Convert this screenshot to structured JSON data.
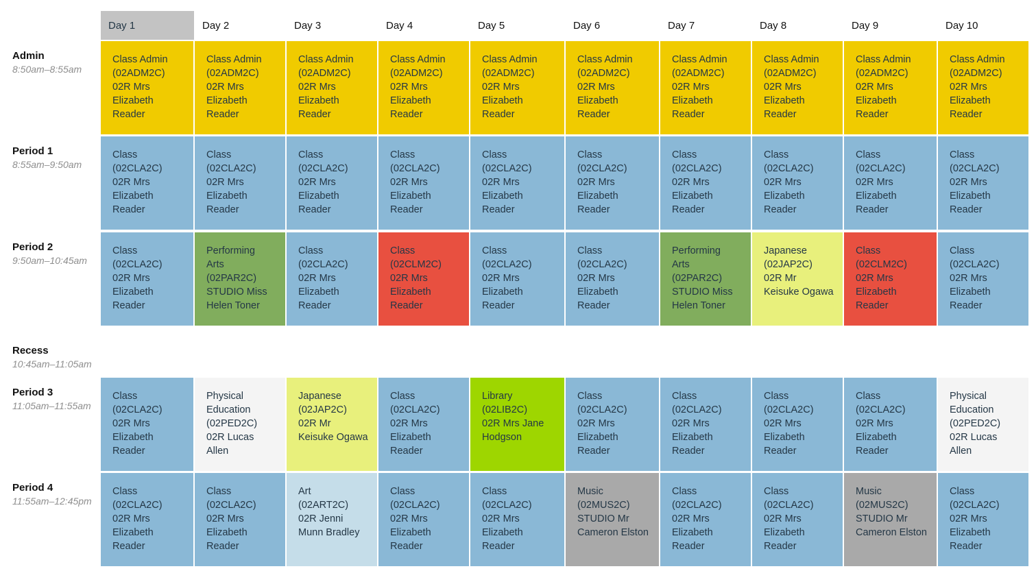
{
  "days": [
    "Day 1",
    "Day 2",
    "Day 3",
    "Day 4",
    "Day 5",
    "Day 6",
    "Day 7",
    "Day 8",
    "Day 9",
    "Day 10"
  ],
  "selected_day_index": 0,
  "classes": {
    "ADM": {
      "lines": [
        "Class Admin",
        "(02ADM2C)",
        "02R Mrs",
        "Elizabeth",
        "Reader"
      ],
      "color": "#f0cb00"
    },
    "CLA": {
      "lines": [
        "Class",
        "(02CLA2C)",
        "02R Mrs",
        "Elizabeth",
        "Reader"
      ],
      "color": "#8ab8d6"
    },
    "CLM": {
      "lines": [
        "Class",
        "(02CLM2C)",
        "02R Mrs",
        "Elizabeth",
        "Reader"
      ],
      "color": "#e85040"
    },
    "PAR": {
      "lines": [
        "Performing",
        "Arts",
        "(02PAR2C)",
        "STUDIO Miss",
        "Helen Toner"
      ],
      "color": "#81ad5d"
    },
    "JAP": {
      "lines": [
        "Japanese",
        "(02JAP2C)",
        "02R Mr",
        "Keisuke Ogawa"
      ],
      "color": "#e8f07c"
    },
    "PED": {
      "lines": [
        "Physical",
        "Education",
        "(02PED2C)",
        "02R Lucas",
        "Allen"
      ],
      "color": "#f4f4f4"
    },
    "LIB": {
      "lines": [
        "Library",
        "(02LIB2C)",
        "02R Mrs Jane",
        "Hodgson"
      ],
      "color": "#9ed600"
    },
    "ART": {
      "lines": [
        "Art",
        "(02ART2C)",
        "02R Jenni",
        "Munn Bradley"
      ],
      "color": "#c5dde9"
    },
    "MUS": {
      "lines": [
        "Music",
        "(02MUS2C)",
        "STUDIO Mr",
        "Cameron Elston"
      ],
      "color": "#a9a9a9"
    }
  },
  "periods": [
    {
      "name": "Admin",
      "time": "8:50am–8:55am",
      "slots": [
        "ADM",
        "ADM",
        "ADM",
        "ADM",
        "ADM",
        "ADM",
        "ADM",
        "ADM",
        "ADM",
        "ADM"
      ]
    },
    {
      "name": "Period 1",
      "time": "8:55am–9:50am",
      "slots": [
        "CLA",
        "CLA",
        "CLA",
        "CLA",
        "CLA",
        "CLA",
        "CLA",
        "CLA",
        "CLA",
        "CLA"
      ]
    },
    {
      "name": "Period 2",
      "time": "9:50am–10:45am",
      "slots": [
        "CLA",
        "PAR",
        "CLA",
        "CLM",
        "CLA",
        "CLA",
        "PAR",
        "JAP",
        "CLM",
        "CLA"
      ]
    },
    {
      "name": "Recess",
      "time": "10:45am–11:05am",
      "slots": []
    },
    {
      "name": "Period 3",
      "time": "11:05am–11:55am",
      "slots": [
        "CLA",
        "PED",
        "JAP",
        "CLA",
        "LIB",
        "CLA",
        "CLA",
        "CLA",
        "CLA",
        "PED"
      ]
    },
    {
      "name": "Period 4",
      "time": "11:55am–12:45pm",
      "slots": [
        "CLA",
        "CLA",
        "ART",
        "CLA",
        "CLA",
        "MUS",
        "CLA",
        "CLA",
        "MUS",
        "CLA"
      ]
    }
  ]
}
